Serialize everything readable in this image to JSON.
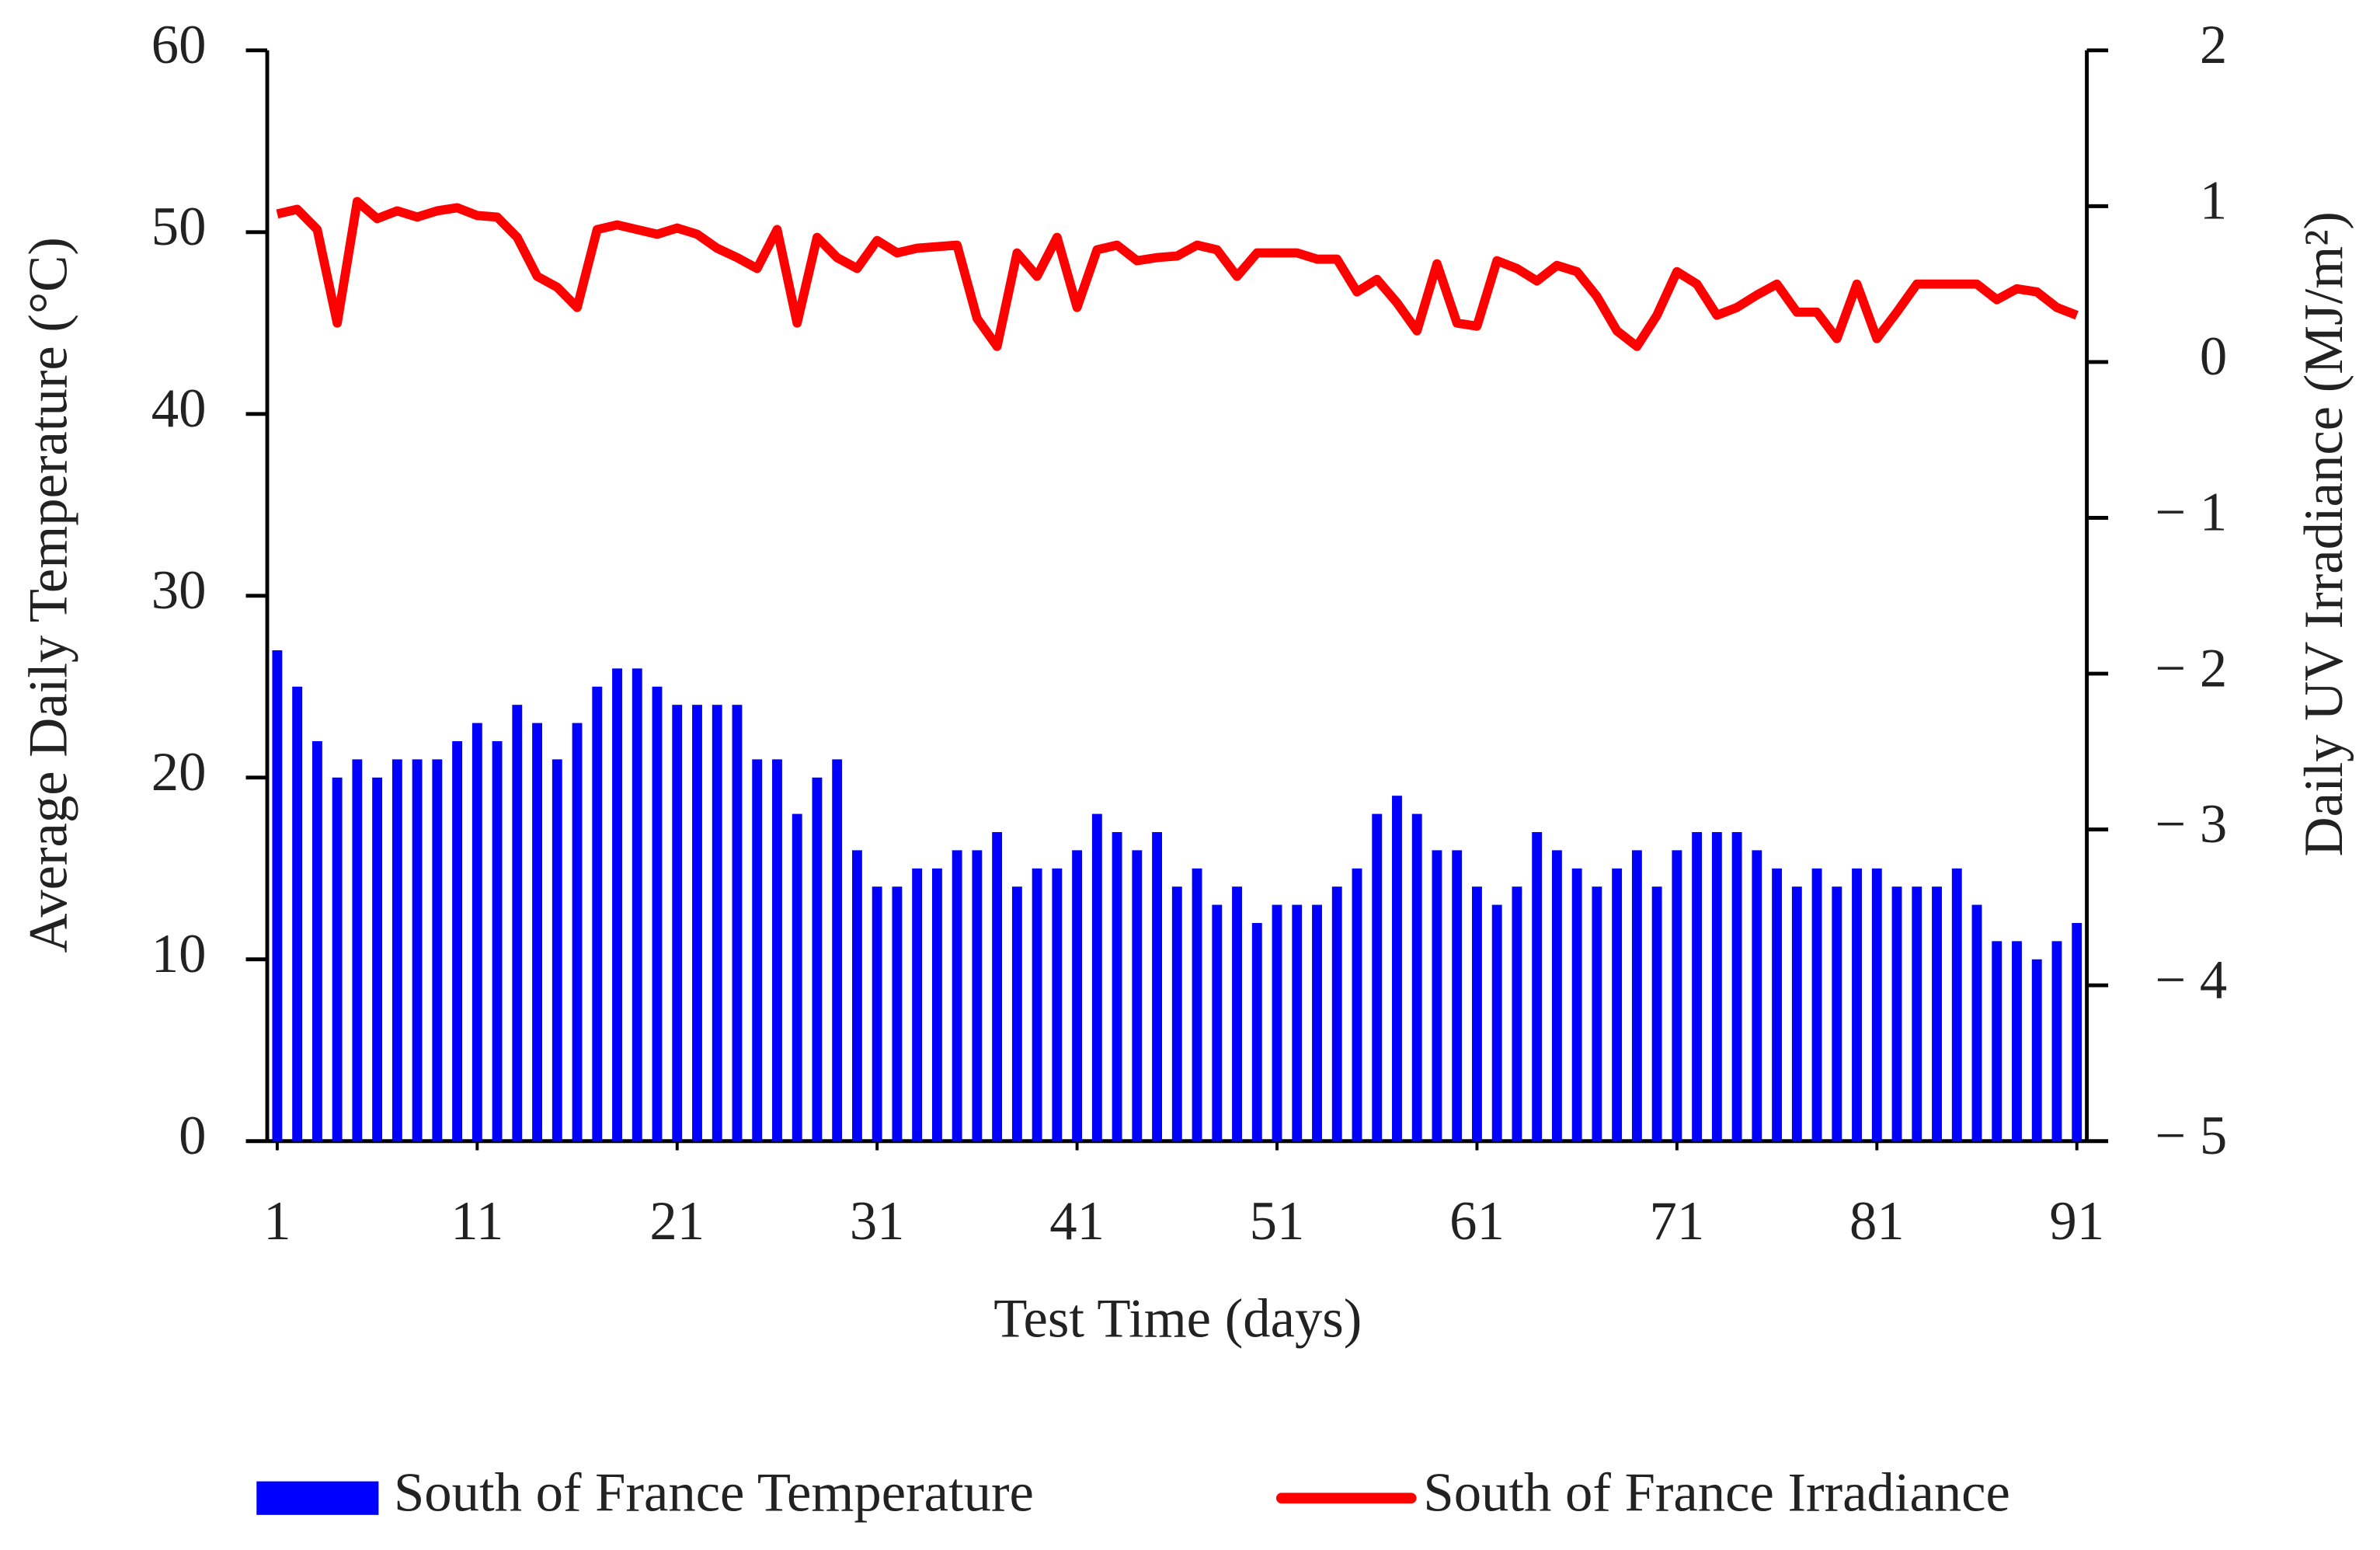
{
  "chart_data": {
    "type": "bar",
    "x_label": "Test Time (days)",
    "y_label": "Average Daily Temperature (°C)",
    "y2_label": "Daily UV Irradiance (MJ/m²)",
    "x": [
      1,
      2,
      3,
      4,
      5,
      6,
      7,
      8,
      9,
      10,
      11,
      12,
      13,
      14,
      15,
      16,
      17,
      18,
      19,
      20,
      21,
      22,
      23,
      24,
      25,
      26,
      27,
      28,
      29,
      30,
      31,
      32,
      33,
      34,
      35,
      36,
      37,
      38,
      39,
      40,
      41,
      42,
      43,
      44,
      45,
      46,
      47,
      48,
      49,
      50,
      51,
      52,
      53,
      54,
      55,
      56,
      57,
      58,
      59,
      60,
      61,
      62,
      63,
      64,
      65,
      66,
      67,
      68,
      69,
      70,
      71,
      72,
      73,
      74,
      75,
      76,
      77,
      78,
      79,
      80,
      81,
      82,
      83,
      84,
      85,
      86,
      87,
      88,
      89,
      90,
      91
    ],
    "xlim": [
      0.5,
      91.5
    ],
    "xticks": [
      1,
      11,
      21,
      31,
      41,
      51,
      61,
      71,
      81,
      91
    ],
    "ylim": [
      0,
      60
    ],
    "yticks": [
      0,
      10,
      20,
      30,
      40,
      50,
      60
    ],
    "y2lim": [
      -5,
      2
    ],
    "y2ticks": [
      {
        "value": -5,
        "label": "− 5"
      },
      {
        "value": -4,
        "label": "− 4"
      },
      {
        "value": -3,
        "label": "− 3"
      },
      {
        "value": -2,
        "label": "− 2"
      },
      {
        "value": -1,
        "label": "− 1"
      },
      0,
      1,
      2
    ],
    "legend": "bottom",
    "series": [
      {
        "name": "South of France Temperature",
        "type": "bar",
        "color": "#0000ff",
        "values": [
          27,
          25,
          22,
          20,
          21,
          20,
          21,
          21,
          21,
          22,
          23,
          22,
          24,
          23,
          21,
          23,
          25,
          26,
          26,
          25,
          24,
          24,
          24,
          24,
          21,
          21,
          18,
          20,
          21,
          16,
          14,
          14,
          15,
          15,
          16,
          16,
          17,
          14,
          15,
          15,
          16,
          18,
          17,
          16,
          17,
          14,
          15,
          13,
          14,
          12,
          13,
          13,
          13,
          14,
          15,
          18,
          19,
          18,
          16,
          16,
          14,
          13,
          14,
          17,
          16,
          15,
          14,
          15,
          16,
          14,
          16,
          17,
          17,
          17,
          16,
          15,
          14,
          15,
          14,
          15,
          15,
          14,
          14,
          14,
          15,
          13,
          11,
          11,
          10,
          11,
          12
        ]
      },
      {
        "name": "South of France Irradiance",
        "type": "line",
        "axis": "y2",
        "color": "#ff0000",
        "values": [
          0.95,
          0.98,
          0.85,
          0.25,
          1.03,
          0.92,
          0.97,
          0.93,
          0.97,
          0.99,
          0.94,
          0.93,
          0.8,
          0.55,
          0.48,
          0.35,
          0.85,
          0.88,
          0.85,
          0.82,
          0.86,
          0.82,
          0.73,
          0.67,
          0.6,
          0.85,
          0.25,
          0.8,
          0.67,
          0.6,
          0.78,
          0.7,
          0.73,
          0.74,
          0.75,
          0.28,
          0.1,
          0.7,
          0.55,
          0.8,
          0.35,
          0.72,
          0.75,
          0.65,
          0.67,
          0.68,
          0.75,
          0.72,
          0.55,
          0.7,
          0.7,
          0.7,
          0.66,
          0.66,
          0.45,
          0.53,
          0.38,
          0.2,
          0.63,
          0.25,
          0.23,
          0.65,
          0.6,
          0.52,
          0.62,
          0.58,
          0.42,
          0.2,
          0.1,
          0.3,
          0.58,
          0.5,
          0.3,
          0.35,
          0.43,
          0.5,
          0.32,
          0.32,
          0.15,
          0.5,
          0.15,
          0.32,
          0.5,
          0.5,
          0.5,
          0.5,
          0.4,
          0.47,
          0.45,
          0.35,
          0.3
        ]
      }
    ]
  }
}
